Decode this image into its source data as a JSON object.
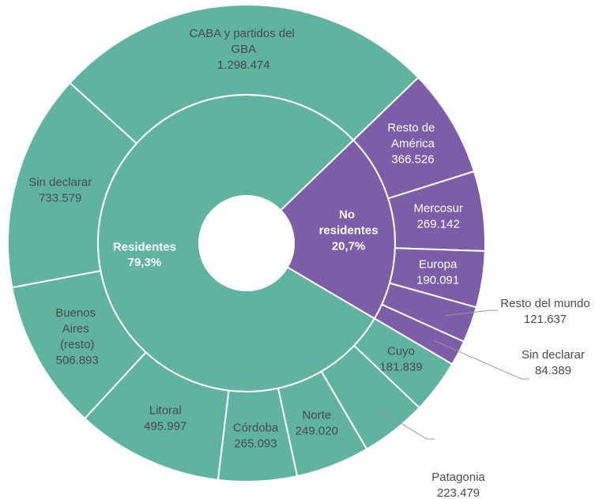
{
  "chart_data": {
    "type": "sunburst",
    "groups": [
      {
        "name": "No residentes",
        "value": 20.7,
        "value_label": "20,7%",
        "color": "#7b5ea7",
        "categories": [
          "Resto de América",
          "Mercosur",
          "Europa",
          "Resto del mundo",
          "Sin declarar"
        ],
        "values": [
          366526,
          269142,
          190091,
          121637,
          84389
        ],
        "value_labels": [
          "366.526",
          "269.142",
          "190.091",
          "121.637",
          "84.389"
        ]
      },
      {
        "name": "Residentes",
        "value": 79.3,
        "value_label": "79,3%",
        "color": "#5fb3a0",
        "categories": [
          "Cuyo",
          "Patagonia",
          "Norte",
          "Córdoba",
          "Litoral",
          "Buenos Aires (resto)",
          "Sin declarar",
          "CABA y partidos del GBA"
        ],
        "values": [
          181839,
          223479,
          249020,
          265093,
          495997,
          506893,
          733579,
          1298474
        ],
        "value_labels": [
          "181.839",
          "223.479",
          "249.020",
          "265.093",
          "495.997",
          "506.893",
          "733.579",
          "1.298.474"
        ]
      }
    ]
  }
}
